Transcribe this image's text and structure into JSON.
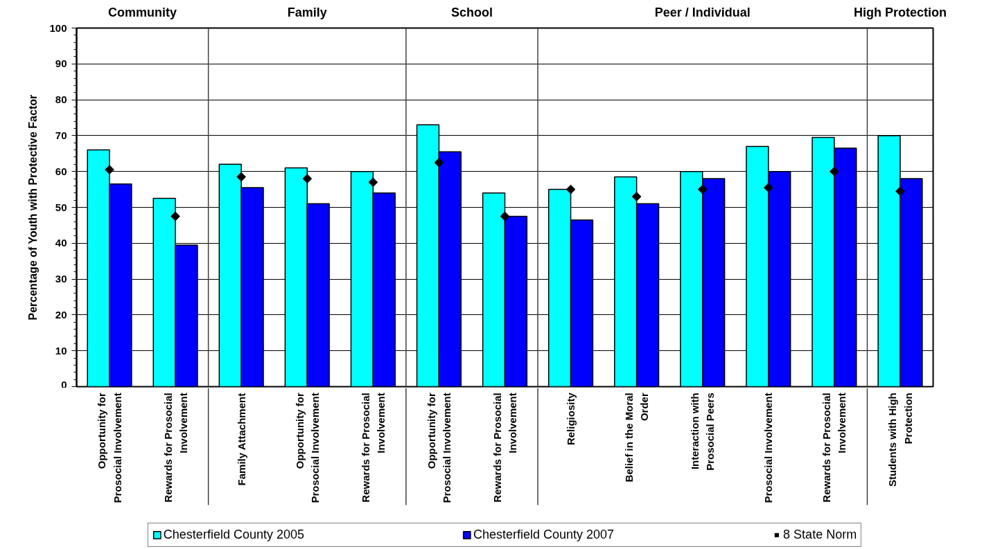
{
  "chart_data": {
    "type": "bar",
    "ylabel": "Percentage of Youth with Protective Factor",
    "categories": [
      "Opportunity for Prosocial Involvement",
      "Rewards for Prosocial Involvement",
      "Family Attachment",
      "Opportunity for Prosocial Involvement",
      "Rewards for Prosocial Involvement",
      "Opportunity for Prosocial Involvement",
      "Rewards for Prosocial Involvement",
      "Religiosity",
      "Belief in the Moral Order",
      "Interaction with Prosocial Peers",
      "Prosocial Involvement",
      "Rewards for Prosocial Involvement",
      "Students with High Protection"
    ],
    "series": [
      {
        "name": "Chesterfield County 2005",
        "color": "#00ffff",
        "values": [
          66.0,
          52.5,
          62.0,
          61.0,
          60.0,
          73.0,
          54.0,
          55.0,
          58.5,
          60.0,
          67.0,
          69.5,
          70.0
        ]
      },
      {
        "name": "Chesterfield County 2007",
        "color": "#0000ff",
        "values": [
          56.5,
          39.5,
          55.5,
          51.0,
          54.0,
          65.5,
          47.5,
          46.5,
          51.0,
          58.0,
          60.0,
          66.5,
          58.0
        ]
      },
      {
        "name": "8 State Norm",
        "type": "scatter",
        "marker": "diamond",
        "color": "#000000",
        "values": [
          60.5,
          47.5,
          58.5,
          58.0,
          57.0,
          62.5,
          47.5,
          55.0,
          53.0,
          55.0,
          55.5,
          60.0,
          54.5
        ]
      }
    ],
    "ylim": [
      0,
      100
    ],
    "yticks": [
      0,
      {
        "value": 2,
        "label": null
      },
      {
        "value": 4,
        "label": null
      },
      {
        "value": 6,
        "label": null
      },
      {
        "value": 8,
        "label": null
      },
      10,
      {
        "value": 12,
        "label": null
      },
      {
        "value": 14,
        "label": null
      },
      {
        "value": 16,
        "label": null
      },
      {
        "value": 18,
        "label": null
      },
      20,
      {
        "value": 22,
        "label": null
      },
      {
        "value": 24,
        "label": null
      },
      {
        "value": 26,
        "label": null
      },
      {
        "value": 28,
        "label": null
      },
      30,
      {
        "value": 32,
        "label": null
      },
      {
        "value": 34,
        "label": null
      },
      {
        "value": 36,
        "label": null
      },
      {
        "value": 38,
        "label": null
      },
      40,
      {
        "value": 42,
        "label": null
      },
      {
        "value": 44,
        "label": null
      },
      {
        "value": 46,
        "label": null
      },
      {
        "value": 48,
        "label": null
      },
      50,
      {
        "value": 52,
        "label": null
      },
      {
        "value": 54,
        "label": null
      },
      {
        "value": 56,
        "label": null
      },
      {
        "value": 58,
        "label": null
      },
      60,
      {
        "value": 62,
        "label": null
      },
      {
        "value": 64,
        "label": null
      },
      {
        "value": 66,
        "label": null
      },
      {
        "value": 68,
        "label": null
      },
      70,
      {
        "value": 72,
        "label": null
      },
      {
        "value": 74,
        "label": null
      },
      {
        "value": 76,
        "label": null
      },
      {
        "value": 78,
        "label": null
      },
      80,
      {
        "value": 82,
        "label": null
      },
      {
        "value": 84,
        "label": null
      },
      {
        "value": 86,
        "label": null
      },
      {
        "value": 88,
        "label": null
      },
      90,
      {
        "value": 92,
        "label": null
      },
      {
        "value": 94,
        "label": null
      },
      {
        "value": 96,
        "label": null
      },
      {
        "value": 98,
        "label": null
      },
      100
    ],
    "grid": "y",
    "legend": "bottom",
    "annotations": [
      "Community",
      "Family",
      "School",
      "Peer / Individual",
      "High Protection"
    ]
  }
}
